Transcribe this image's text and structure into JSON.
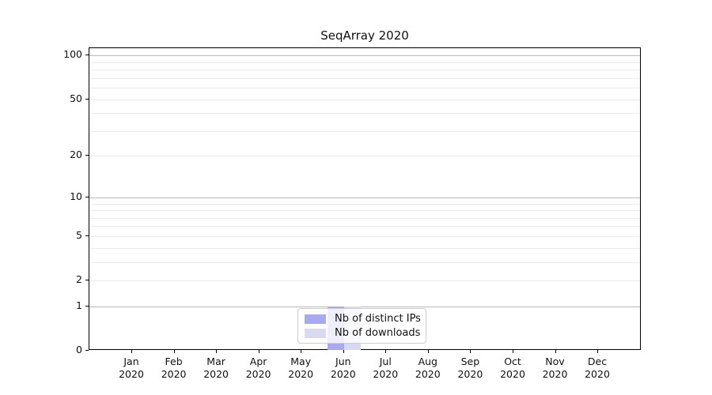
{
  "chart_data": {
    "type": "bar",
    "title": "SeqArray 2020",
    "categories": [
      "Jan 2020",
      "Feb 2020",
      "Mar 2020",
      "Apr 2020",
      "May 2020",
      "Jun 2020",
      "Jul 2020",
      "Aug 2020",
      "Sep 2020",
      "Oct 2020",
      "Nov 2020",
      "Dec 2020"
    ],
    "series": [
      {
        "name": "Nb of distinct IPs",
        "color": "#a9a9ef",
        "values": [
          0,
          0,
          0,
          0,
          0,
          1,
          0,
          0,
          0,
          0,
          0,
          0
        ]
      },
      {
        "name": "Nb of downloads",
        "color": "#d9d9f2",
        "values": [
          0,
          0,
          0,
          0,
          0,
          1,
          0,
          0,
          0,
          0,
          0,
          0
        ]
      }
    ],
    "xlabel": "",
    "ylabel": "",
    "yscale": "log1p",
    "ylim": [
      0,
      112
    ],
    "yticks": [
      0,
      1,
      2,
      5,
      10,
      20,
      50,
      100
    ],
    "grid": "horizontal",
    "legend_position": "bottom-center-inside"
  },
  "colors": {
    "major_grid": "#b9b9b9",
    "minor_grid": "#ebebeb",
    "axis": "#000000",
    "legend_border": "#cccccc"
  }
}
